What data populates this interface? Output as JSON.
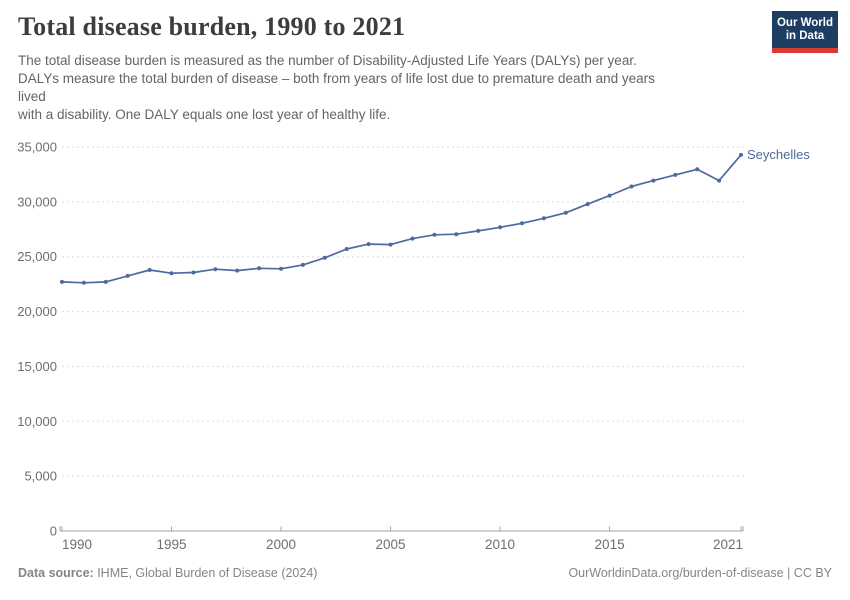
{
  "header": {
    "title": "Total disease burden, 1990 to 2021",
    "subtitle_lines": [
      "The total disease burden is measured as the number of Disability-Adjusted Life Years (DALYs) per year.",
      "DALYs measure the total burden of disease – both from years of life lost due to premature death and years",
      "lived",
      "with a disability. One DALY equals one lost year of healthy life."
    ],
    "logo": {
      "line1": "Our World",
      "line2": "in Data",
      "bg_color": "#1d3d63",
      "accent_color": "#d93a34"
    }
  },
  "chart_data": {
    "type": "line",
    "title": "Total disease burden, 1990 to 2021",
    "xlabel": "",
    "ylabel": "",
    "xlim": [
      1990,
      2021
    ],
    "ylim": [
      0,
      35000
    ],
    "x_ticks": [
      1990,
      1995,
      2000,
      2005,
      2010,
      2015,
      2021
    ],
    "y_ticks": [
      0,
      5000,
      10000,
      15000,
      20000,
      25000,
      30000,
      35000
    ],
    "grid": "horizontal-dashed",
    "legend": "end-of-line-label",
    "x": [
      1990,
      1991,
      1992,
      1993,
      1994,
      1995,
      1996,
      1997,
      1998,
      1999,
      2000,
      2001,
      2002,
      2003,
      2004,
      2005,
      2006,
      2007,
      2008,
      2009,
      2010,
      2011,
      2012,
      2013,
      2014,
      2015,
      2016,
      2017,
      2018,
      2019,
      2020,
      2021
    ],
    "series": [
      {
        "name": "Seychelles",
        "color": "#4c6a9c",
        "values": [
          22700,
          22620,
          22700,
          23250,
          23790,
          23500,
          23560,
          23860,
          23730,
          23940,
          23900,
          24250,
          24900,
          25700,
          26150,
          26100,
          26650,
          27000,
          27050,
          27350,
          27680,
          28050,
          28500,
          29000,
          29800,
          30570,
          31400,
          31940,
          32460,
          32970,
          31940,
          34280
        ]
      }
    ],
    "end_label": "Seychelles",
    "colors": {
      "gridline": "#dddddd",
      "axis": "#a5a5a5",
      "tick_label": "#6e6e6e"
    }
  },
  "footer": {
    "source_label": "Data source:",
    "source_value": " IHME, Global Burden of Disease (2024)",
    "credit": "OurWorldinData.org/burden-of-disease | CC BY"
  }
}
